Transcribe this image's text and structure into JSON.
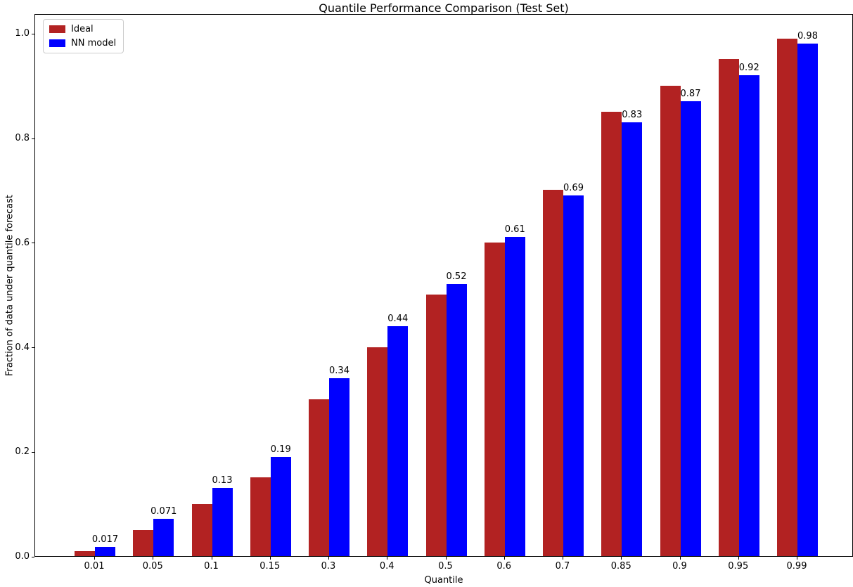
{
  "figure": {
    "kind": "matplotlib-bar-chart"
  },
  "chart_data": {
    "type": "bar",
    "title": "Quantile Performance Comparison (Test Set)",
    "xlabel": "Quantile",
    "ylabel": "Fraction of data under quantile forecast",
    "categories": [
      "0.01",
      "0.05",
      "0.1",
      "0.15",
      "0.3",
      "0.4",
      "0.5",
      "0.6",
      "0.7",
      "0.85",
      "0.9",
      "0.95",
      "0.99"
    ],
    "series": [
      {
        "name": "Ideal",
        "color": "#b22222",
        "values": [
          0.01,
          0.05,
          0.1,
          0.15,
          0.3,
          0.4,
          0.5,
          0.6,
          0.7,
          0.85,
          0.9,
          0.95,
          0.99
        ]
      },
      {
        "name": "NN model",
        "color": "#0000ff",
        "values": [
          0.017,
          0.071,
          0.13,
          0.19,
          0.34,
          0.44,
          0.52,
          0.61,
          0.69,
          0.83,
          0.87,
          0.92,
          0.98
        ],
        "bar_labels": [
          "0.017",
          "0.071",
          "0.13",
          "0.19",
          "0.34",
          "0.44",
          "0.52",
          "0.61",
          "0.69",
          "0.83",
          "0.87",
          "0.92",
          "0.98"
        ]
      }
    ],
    "yticks": [
      "0.0",
      "0.2",
      "0.4",
      "0.6",
      "0.8",
      "1.0"
    ],
    "ytick_values": [
      0.0,
      0.2,
      0.4,
      0.6,
      0.8,
      1.0
    ],
    "ylim": [
      0,
      1.038
    ],
    "grid": false,
    "legend_position": "upper left",
    "legend": [
      {
        "label": "Ideal",
        "color": "#b22222"
      },
      {
        "label": "NN model",
        "color": "#0000ff"
      }
    ]
  }
}
